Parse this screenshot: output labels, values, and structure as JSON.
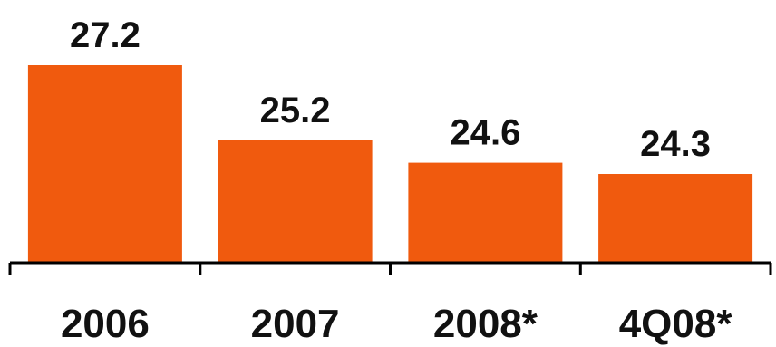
{
  "chart_data": {
    "type": "bar",
    "categories": [
      "2006",
      "2007",
      "2008*",
      "4Q08*"
    ],
    "values": [
      27.2,
      25.2,
      24.6,
      24.3
    ],
    "title": "",
    "xlabel": "",
    "ylabel": "",
    "bar_color": "#f05a0e",
    "axis_color": "#000000",
    "grid": false,
    "legend": "none"
  }
}
